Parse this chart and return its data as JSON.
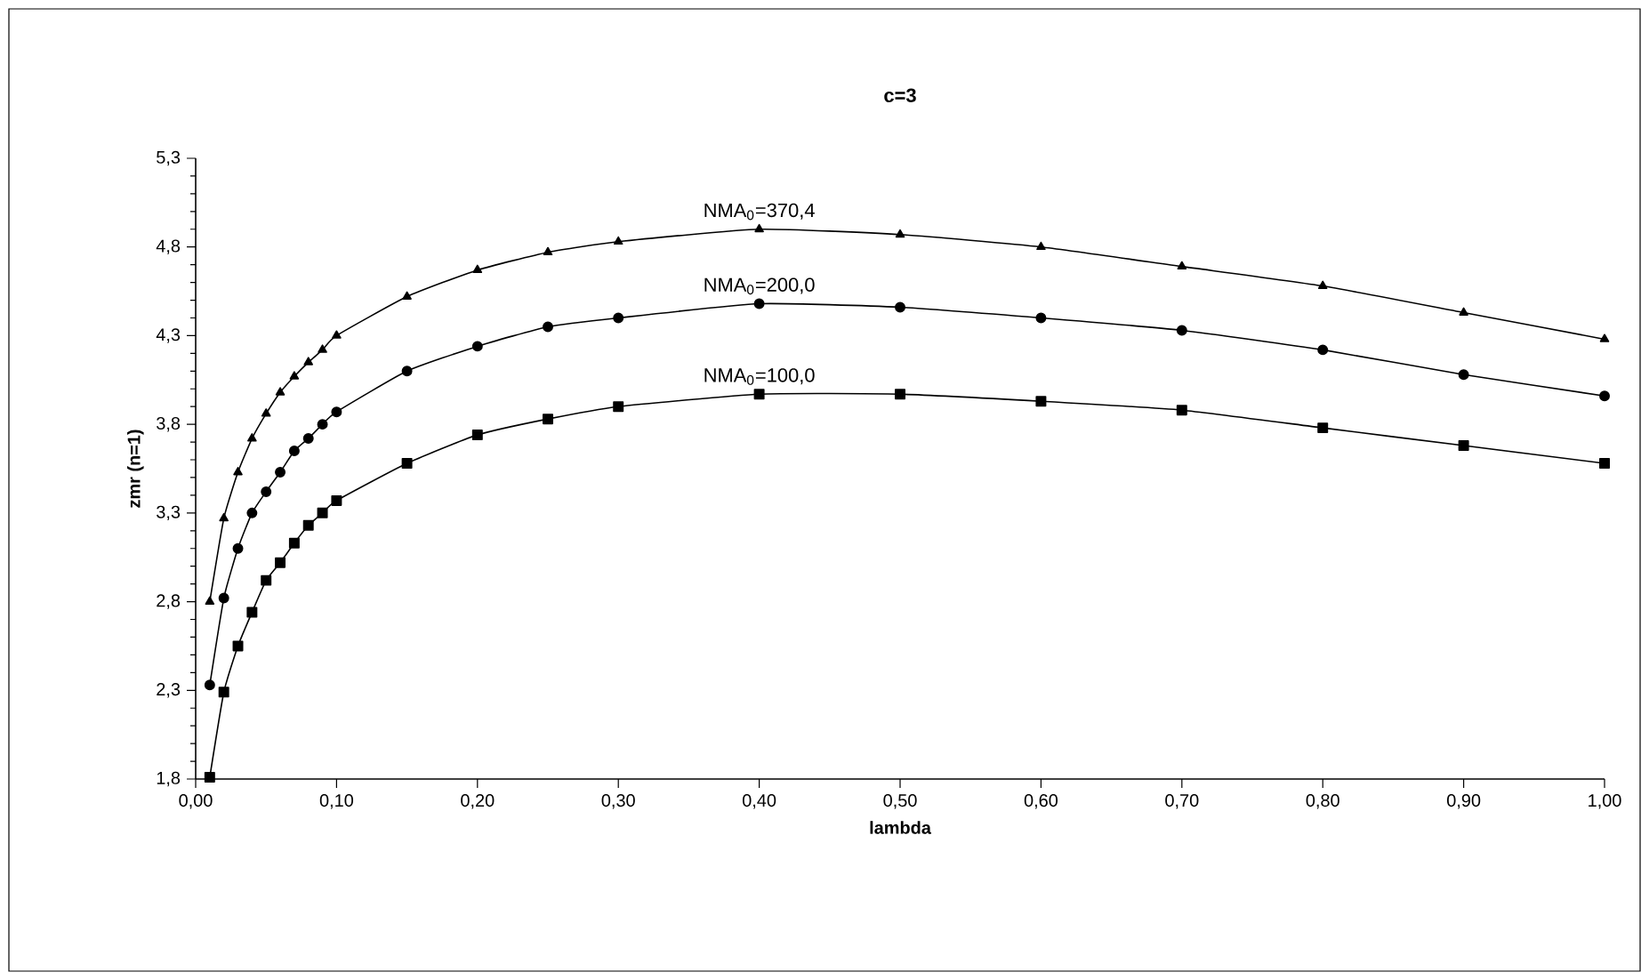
{
  "chart_data": {
    "type": "line",
    "title": "c=3",
    "xlabel": "lambda",
    "ylabel": "zmr (n=1)",
    "x": [
      0.01,
      0.02,
      0.03,
      0.04,
      0.05,
      0.06,
      0.07,
      0.08,
      0.09,
      0.1,
      0.15,
      0.2,
      0.25,
      0.3,
      0.4,
      0.5,
      0.6,
      0.7,
      0.8,
      0.9,
      1.0
    ],
    "series": [
      {
        "name": "NMA$_{0}$=370,4",
        "color": "#000000",
        "marker": "triangle",
        "values": [
          2.8,
          3.27,
          3.53,
          3.72,
          3.86,
          3.98,
          4.07,
          4.15,
          4.22,
          4.3,
          4.52,
          4.67,
          4.77,
          4.83,
          4.9,
          4.87,
          4.8,
          4.69,
          4.58,
          4.43,
          4.28
        ]
      },
      {
        "name": "NMA$_{0}$=200,0",
        "color": "#000000",
        "marker": "circle",
        "values": [
          2.33,
          2.82,
          3.1,
          3.3,
          3.42,
          3.53,
          3.65,
          3.72,
          3.8,
          3.87,
          4.1,
          4.24,
          4.35,
          4.4,
          4.48,
          4.46,
          4.4,
          4.33,
          4.22,
          4.08,
          3.96
        ]
      },
      {
        "name": "NMA$_{0}$=100,0",
        "color": "#000000",
        "marker": "square",
        "values": [
          1.81,
          2.29,
          2.55,
          2.74,
          2.92,
          3.02,
          3.13,
          3.23,
          3.3,
          3.37,
          3.58,
          3.74,
          3.83,
          3.9,
          3.97,
          3.97,
          3.93,
          3.88,
          3.78,
          3.68,
          3.58
        ]
      }
    ],
    "xlim": [
      0,
      1
    ],
    "xticks": [
      {
        "value": 0,
        "label": "0,00"
      },
      {
        "value": 0.1,
        "label": "0,10"
      },
      {
        "value": 0.2,
        "label": "0,20"
      },
      {
        "value": 0.3,
        "label": "0,30"
      },
      {
        "value": 0.4,
        "label": "0,40"
      },
      {
        "value": 0.5,
        "label": "0,50"
      },
      {
        "value": 0.6,
        "label": "0,60"
      },
      {
        "value": 0.7,
        "label": "0,70"
      },
      {
        "value": 0.8,
        "label": "0,80"
      },
      {
        "value": 0.9,
        "label": "0,90"
      },
      {
        "value": 1,
        "label": "1,00"
      }
    ],
    "ylim": [
      1.8,
      5.3
    ],
    "yticks": [
      {
        "value": 1.8,
        "label": "1,8"
      },
      {
        "value": 2.3,
        "label": "2,3"
      },
      {
        "value": 2.8,
        "label": "2,8"
      },
      {
        "value": 3.3,
        "label": "3,3"
      },
      {
        "value": 3.8,
        "label": "3,8"
      },
      {
        "value": 4.3,
        "label": "4,3"
      },
      {
        "value": 4.8,
        "label": "4,8"
      },
      {
        "value": 5.3,
        "label": "5,3"
      }
    ],
    "grid": false,
    "legend": false,
    "line_style": "solid"
  }
}
